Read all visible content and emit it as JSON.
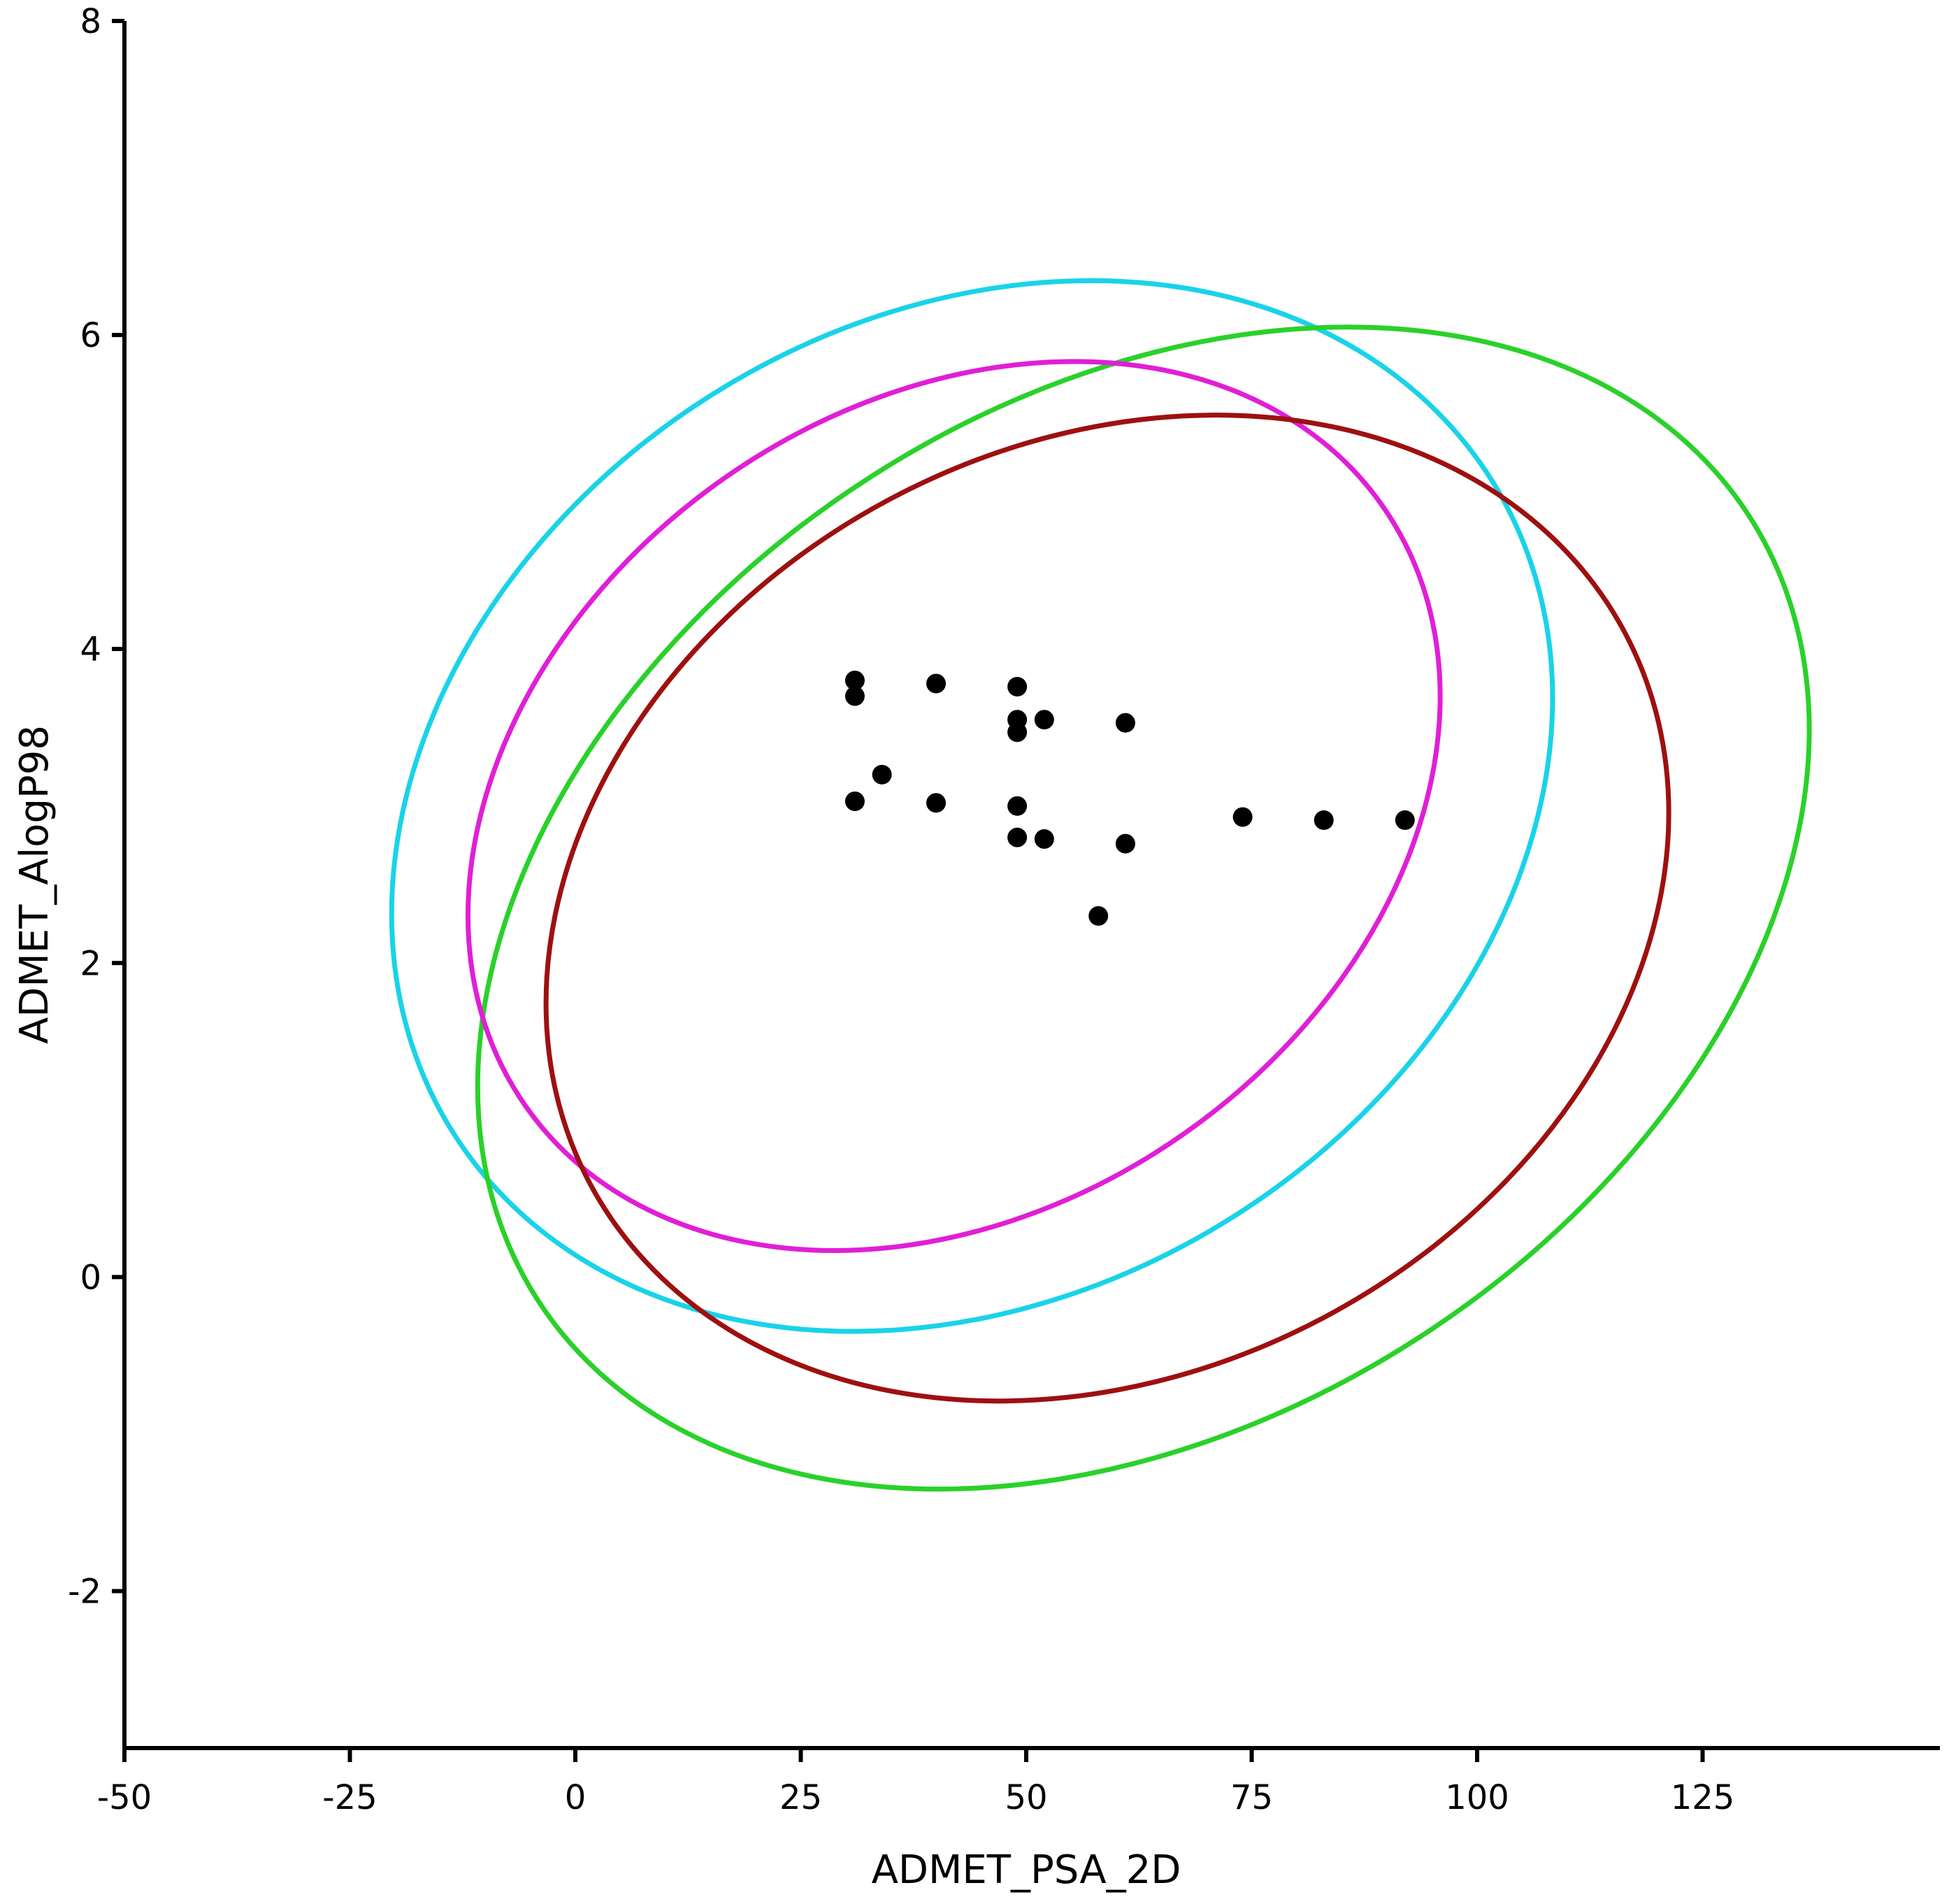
{
  "chart_data": {
    "type": "scatter",
    "title": "",
    "xlabel": "ADMET_PSA_2D",
    "ylabel": "ADMET_AlogP98",
    "xlim": [
      -50,
      150
    ],
    "ylim": [
      -3,
      8
    ],
    "xticks": [
      -50,
      -25,
      0,
      25,
      50,
      75,
      100,
      125
    ],
    "yticks": [
      -2,
      0,
      2,
      4,
      6,
      8
    ],
    "grid": false,
    "legend": "none",
    "points": {
      "color": "#000000",
      "x": [
        31,
        31,
        40,
        49,
        49,
        49,
        52,
        61,
        34,
        31,
        40,
        49,
        49,
        52,
        61,
        74,
        83,
        92,
        58
      ],
      "y": [
        3.8,
        3.7,
        3.78,
        3.76,
        3.55,
        3.47,
        3.55,
        3.53,
        3.2,
        3.03,
        3.02,
        3.0,
        2.8,
        2.79,
        2.76,
        2.93,
        2.91,
        2.91,
        2.3
      ]
    },
    "ellipses": [
      {
        "color": "#19d3e8",
        "cx": 44,
        "cy": 3.0,
        "rx": 68,
        "ry": 3.1,
        "angle_deg": -32
      },
      {
        "color": "#2ad12a",
        "cx": 63,
        "cy": 2.35,
        "rx": 80,
        "ry": 3.25,
        "angle_deg": -33
      },
      {
        "color": "#e01fd6",
        "cx": 42,
        "cy": 3.0,
        "rx": 58,
        "ry": 2.55,
        "angle_deg": -35
      },
      {
        "color": "#9e1010",
        "cx": 59,
        "cy": 2.35,
        "rx": 65,
        "ry": 2.95,
        "angle_deg": -28
      }
    ]
  }
}
